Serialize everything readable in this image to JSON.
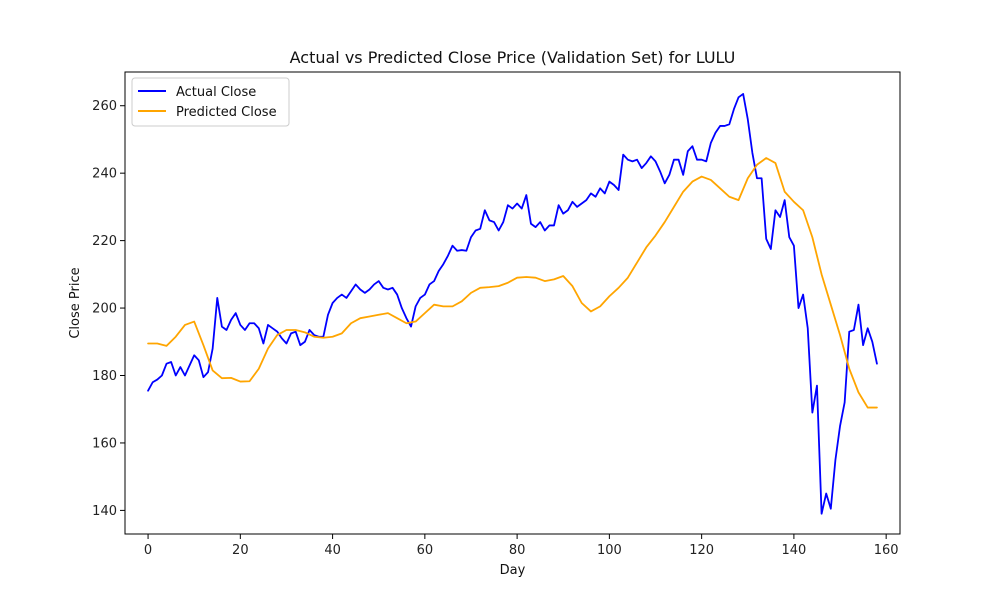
{
  "chart_data": {
    "type": "line",
    "title": "Actual vs Predicted Close Price (Validation Set) for LULU",
    "xlabel": "Day",
    "ylabel": "Close Price",
    "xlim": [
      -5,
      163
    ],
    "ylim": [
      133,
      270
    ],
    "xticks": [
      0,
      20,
      40,
      60,
      80,
      100,
      120,
      140,
      160
    ],
    "yticks": [
      140,
      160,
      180,
      200,
      220,
      240,
      260
    ],
    "grid": false,
    "legend_position": "upper-left",
    "series": [
      {
        "name": "Actual Close",
        "color": "#0000ff",
        "x": [
          0,
          1,
          2,
          3,
          4,
          5,
          6,
          7,
          8,
          9,
          10,
          11,
          12,
          13,
          14,
          15,
          16,
          17,
          18,
          19,
          20,
          21,
          22,
          23,
          24,
          25,
          26,
          27,
          28,
          29,
          30,
          31,
          32,
          33,
          34,
          35,
          36,
          37,
          38,
          39,
          40,
          41,
          42,
          43,
          44,
          45,
          46,
          47,
          48,
          49,
          50,
          51,
          52,
          53,
          54,
          55,
          56,
          57,
          58,
          59,
          60,
          61,
          62,
          63,
          64,
          65,
          66,
          67,
          68,
          69,
          70,
          71,
          72,
          73,
          74,
          75,
          76,
          77,
          78,
          79,
          80,
          81,
          82,
          83,
          84,
          85,
          86,
          87,
          88,
          89,
          90,
          91,
          92,
          93,
          94,
          95,
          96,
          97,
          98,
          99,
          100,
          101,
          102,
          103,
          104,
          105,
          106,
          107,
          108,
          109,
          110,
          111,
          112,
          113,
          114,
          115,
          116,
          117,
          118,
          119,
          120,
          121,
          122,
          123,
          124,
          125,
          126,
          127,
          128,
          129,
          130,
          131,
          132,
          133,
          134,
          135,
          136,
          137,
          138,
          139,
          140,
          141,
          142,
          143,
          144,
          145,
          146,
          147,
          148,
          149,
          150,
          151,
          152,
          153,
          154,
          155,
          156,
          157,
          158
        ],
        "values": [
          175.5,
          178,
          178.8,
          180,
          183.5,
          184,
          180,
          182.5,
          180,
          183,
          186,
          184.5,
          179.5,
          181,
          188,
          203,
          194.5,
          193.5,
          196.5,
          198.5,
          195,
          193.5,
          195.5,
          195.5,
          194,
          189.5,
          195,
          194,
          193,
          191,
          189.5,
          192.5,
          193,
          189,
          190,
          193.5,
          192,
          191.5,
          191.5,
          198,
          201.5,
          203,
          204,
          203,
          205,
          207,
          205.5,
          204.5,
          205.5,
          207,
          208,
          206,
          205.5,
          206,
          204,
          200,
          197,
          194.5,
          200.5,
          203,
          204,
          207,
          208,
          211,
          213,
          215.5,
          218.5,
          217,
          217.2,
          217,
          221,
          223,
          223.5,
          229,
          226,
          225.5,
          223,
          225.5,
          230.5,
          229.5,
          231,
          229.5,
          233.5,
          225,
          224,
          225.5,
          223,
          224.5,
          224.5,
          230.5,
          228,
          229,
          231.5,
          230,
          231,
          232,
          234,
          233,
          235.5,
          234,
          237.5,
          236.5,
          235,
          245.5,
          244,
          243.5,
          244,
          241.5,
          243,
          245,
          243.5,
          240.5,
          237,
          239.5,
          244,
          244,
          239.5,
          246.5,
          248,
          244,
          244,
          243.5,
          249,
          252,
          254,
          254,
          254.5,
          259,
          262.5,
          263.5,
          256,
          246,
          238.5,
          238.5,
          220.5,
          217.5,
          229,
          227,
          232,
          221,
          218.5,
          200,
          204,
          194,
          169,
          177,
          139,
          145,
          140.5,
          155,
          165,
          172,
          193,
          193.5,
          201,
          189,
          194,
          190,
          183.5
        ]
      },
      {
        "name": "Predicted Close",
        "color": "#ffa500",
        "x": [
          0,
          2,
          4,
          6,
          8,
          10,
          12,
          14,
          16,
          18,
          20,
          22,
          24,
          26,
          28,
          30,
          32,
          34,
          36,
          38,
          40,
          42,
          44,
          46,
          48,
          50,
          52,
          54,
          56,
          58,
          60,
          62,
          64,
          66,
          68,
          70,
          72,
          74,
          76,
          78,
          80,
          82,
          84,
          86,
          88,
          90,
          92,
          94,
          96,
          98,
          100,
          102,
          104,
          106,
          108,
          110,
          112,
          114,
          116,
          118,
          120,
          122,
          124,
          126,
          128,
          130,
          132,
          134,
          136,
          138,
          140,
          142,
          144,
          146,
          148,
          150,
          152,
          154,
          156,
          158
        ],
        "values": [
          189.5,
          189.5,
          188.8,
          191.5,
          195,
          196,
          189,
          181.5,
          179.2,
          179.3,
          178.2,
          178.3,
          182,
          188,
          192,
          193.5,
          193.5,
          192.8,
          191.5,
          191.2,
          191.5,
          192.5,
          195.5,
          197,
          197.5,
          198,
          198.5,
          197,
          195.5,
          196,
          198.5,
          201,
          200.5,
          200.5,
          202,
          204.5,
          206,
          206.2,
          206.5,
          207.5,
          209,
          209.2,
          209,
          208,
          208.5,
          209.5,
          206.5,
          201.5,
          199,
          200.5,
          203.5,
          206,
          209,
          213.5,
          218,
          221.5,
          225.5,
          230,
          234.5,
          237.5,
          239,
          238,
          235.5,
          233,
          232,
          238.5,
          242.5,
          244.5,
          243,
          234.5,
          231.5,
          229,
          221,
          210,
          201,
          192,
          182,
          175,
          170.5,
          170.5
        ]
      }
    ]
  }
}
